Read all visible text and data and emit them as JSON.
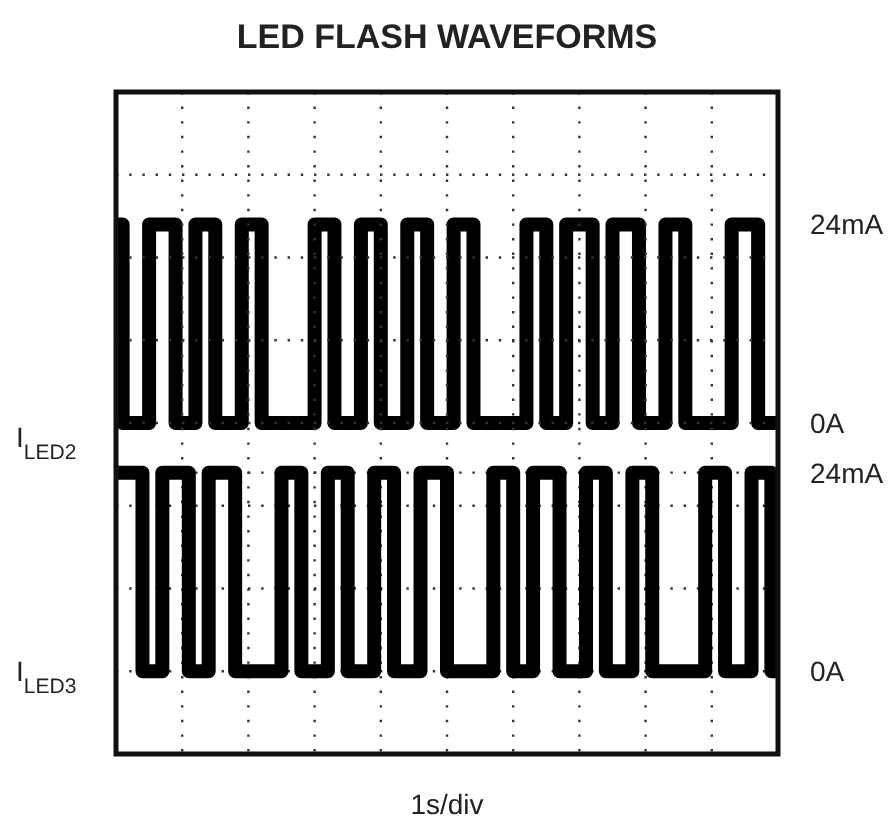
{
  "chart_data": [
    {
      "type": "step",
      "title": "LED FLASH WAVEFORMS",
      "ylabel": "I$_{LED2}$",
      "categories": [
        null,
        null,
        null,
        null,
        null,
        null,
        null,
        null,
        null,
        null,
        null,
        null,
        null,
        null,
        null,
        null,
        null,
        null,
        null,
        null,
        null,
        null,
        null,
        null,
        null,
        null,
        null,
        null,
        null,
        null,
        null,
        null,
        null,
        null,
        null,
        null,
        null,
        null,
        null,
        null,
        null,
        null,
        null,
        null,
        null,
        null,
        null,
        null,
        null,
        null,
        null,
        null,
        null,
        null,
        null,
        null,
        null,
        null,
        null,
        null,
        null,
        null,
        null,
        null,
        null,
        null,
        null,
        null,
        null,
        null,
        null,
        null,
        null,
        null,
        null,
        null,
        null,
        null,
        null,
        null,
        null,
        null,
        null,
        null,
        null,
        null,
        null,
        null,
        null,
        null,
        null,
        null,
        null,
        null,
        null,
        null,
        null,
        null,
        null,
        null,
        null
      ],
      "ylim": [
        -40,
        40
      ],
      "yticks": [
        {
          "value": 0,
          "label": "0A"
        },
        {
          "value": 24,
          "label": "24mA"
        }
      ],
      "tick_labels": "y",
      "series": [
        {
          "color": "#000000",
          "values": [
            24,
            0,
            0,
            0,
            0,
            24,
            24,
            24,
            24,
            0,
            0,
            0,
            24,
            24,
            24,
            0,
            0,
            0,
            0,
            24,
            24,
            24,
            0,
            0,
            0,
            0,
            0,
            0,
            0,
            0,
            24,
            24,
            24,
            0,
            0,
            0,
            0,
            24,
            24,
            24,
            0,
            0,
            0,
            0,
            24,
            24,
            24,
            0,
            0,
            0,
            0,
            24,
            24,
            24,
            0,
            0,
            0,
            0,
            0,
            0,
            0,
            0,
            24,
            24,
            24,
            0,
            0,
            0,
            24,
            24,
            24,
            24,
            0,
            0,
            0,
            24,
            24,
            24,
            24,
            0,
            0,
            0,
            0,
            24,
            24,
            24,
            0,
            0,
            0,
            0,
            0,
            0,
            0,
            24,
            24,
            24,
            24,
            0,
            0,
            0,
            0
          ]
        }
      ]
    },
    {
      "type": "step",
      "xlabel": "1s/div",
      "ylabel": "I$_{LED3}$",
      "categories": [
        null,
        null,
        null,
        null,
        null,
        null,
        null,
        null,
        null,
        null,
        null,
        null,
        null,
        null,
        null,
        null,
        null,
        null,
        null,
        null,
        null,
        null,
        null,
        null,
        null,
        null,
        null,
        null,
        null,
        null,
        null,
        null,
        null,
        null,
        null,
        null,
        null,
        null,
        null,
        null,
        null,
        null,
        null,
        null,
        null,
        null,
        null,
        null,
        null,
        null,
        null,
        null,
        null,
        null,
        null,
        null,
        null,
        null,
        null,
        null,
        null,
        null,
        null,
        null,
        null,
        null,
        null,
        null,
        null,
        null,
        null,
        null,
        null,
        null,
        null,
        null,
        null,
        null,
        null,
        null,
        null,
        null,
        null,
        null,
        null,
        null,
        null,
        null,
        null,
        null,
        null,
        null,
        null,
        null,
        null,
        null,
        null,
        null,
        null,
        null,
        null
      ],
      "ylim": [
        -10,
        70
      ],
      "yticks": [
        {
          "value": -10,
          "label": null
        },
        {
          "value": 0,
          "label": "0A"
        },
        {
          "value": 10,
          "label": null
        },
        {
          "value": 20,
          "label": null
        },
        {
          "value": 24,
          "label": "24mA"
        },
        {
          "value": 30,
          "label": null
        },
        {
          "value": 40,
          "label": null
        },
        {
          "value": 50,
          "label": null
        },
        {
          "value": 60,
          "label": null
        },
        {
          "value": 70,
          "label": null
        }
      ],
      "tick_labels": "y",
      "grid": true,
      "series": [
        {
          "color": "#000000",
          "values": [
            24,
            24,
            24,
            24,
            0,
            0,
            0,
            24,
            24,
            24,
            24,
            0,
            0,
            0,
            24,
            24,
            24,
            24,
            0,
            0,
            0,
            0,
            0,
            0,
            0,
            24,
            24,
            24,
            0,
            0,
            0,
            0,
            24,
            24,
            24,
            0,
            0,
            0,
            0,
            24,
            24,
            24,
            0,
            0,
            0,
            0,
            24,
            24,
            24,
            24,
            0,
            0,
            0,
            0,
            0,
            0,
            0,
            24,
            24,
            24,
            0,
            0,
            0,
            24,
            24,
            24,
            24,
            0,
            0,
            0,
            0,
            24,
            24,
            24,
            0,
            0,
            0,
            0,
            24,
            24,
            24,
            0,
            0,
            0,
            0,
            0,
            0,
            0,
            0,
            24,
            24,
            24,
            0,
            0,
            0,
            0,
            24,
            24,
            24,
            0,
            0
          ]
        }
      ]
    }
  ]
}
